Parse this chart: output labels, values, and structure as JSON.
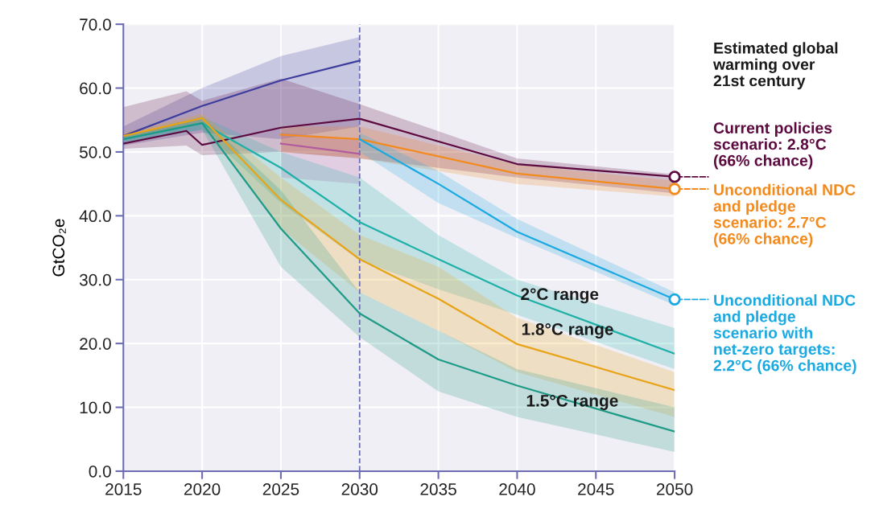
{
  "chart_data": {
    "type": "line",
    "ylabel": "GtCO₂e",
    "legend_title": "Estimated global warming over 21st century",
    "legend": "right",
    "grid": true,
    "xlim": [
      2015,
      2050
    ],
    "xticks": [
      2015,
      2020,
      2025,
      2030,
      2035,
      2040,
      2045,
      2050
    ],
    "ylim": [
      0,
      70
    ],
    "yticks": [
      {
        "value": 0,
        "label": "0.0"
      },
      {
        "value": 10,
        "label": "10.0"
      },
      {
        "value": 20,
        "label": "20.0"
      },
      {
        "value": 30,
        "label": "30.0"
      },
      {
        "value": 40,
        "label": "40.0"
      },
      {
        "value": 50,
        "label": "50.0"
      },
      {
        "value": 60,
        "label": "60.0"
      },
      {
        "value": 70,
        "label": "70.0"
      }
    ],
    "ref_lines": [
      {
        "axis": "x",
        "value": 2030,
        "label": null,
        "color": "#6d6db3",
        "line_style": "dashed"
      }
    ],
    "annotations": [
      {
        "text": "2°C range",
        "x": 2042.7,
        "y": 27.5
      },
      {
        "text": "1.8°C range",
        "x": 2043.2,
        "y": 22
      },
      {
        "text": "1.5°C range",
        "x": 2043.5,
        "y": 10.8
      }
    ],
    "series": [
      {
        "color": "#3d3d9e",
        "x": [
          2015,
          2020,
          2025,
          2030
        ],
        "values": [
          52.5,
          57.2,
          61.2,
          64.3
        ],
        "lower": [
          51,
          53,
          52,
          54
        ],
        "upper": [
          54,
          60,
          65,
          68
        ]
      },
      {
        "color": "#b05c9e",
        "x": [
          2025,
          2030
        ],
        "values": [
          51.3,
          49.7
        ],
        "lower": [
          46,
          45
        ],
        "upper": [
          53,
          52
        ]
      },
      {
        "name": "Current policies scenario: 2.8°C (66% chance)",
        "color": "#5c0a3f",
        "x": [
          2015,
          2019,
          2020,
          2025,
          2030,
          2040,
          2050
        ],
        "values": [
          51.3,
          53.3,
          51.1,
          53.8,
          55.2,
          48.1,
          46.1
        ],
        "lower": [
          50.5,
          51,
          49.5,
          50,
          49,
          46,
          43.5
        ],
        "upper": [
          57,
          59.5,
          58,
          61.5,
          57.5,
          49,
          46.5
        ]
      },
      {
        "name": "Unconditional NDC and pledge scenario: 2.7°C (66% chance)",
        "color": "#f28a1e",
        "x": [
          2025,
          2030,
          2040,
          2050
        ],
        "values": [
          52.7,
          52,
          46.6,
          44.2
        ],
        "lower": [
          50,
          49,
          45,
          43
        ],
        "upper": [
          54,
          54,
          48,
          45.5
        ]
      },
      {
        "name": "Unconditional NDC and pledge scenario with net-zero targets: 2.2°C (66% chance)",
        "color": "#1ba9e1",
        "x": [
          2030,
          2035,
          2040,
          2050
        ],
        "values": [
          52,
          45,
          37.5,
          26.9
        ],
        "lower": [
          50,
          42,
          36.5,
          26
        ],
        "upper": [
          53,
          47,
          39.5,
          28
        ]
      },
      {
        "color": "#1fb0a8",
        "x": [
          2015,
          2020,
          2025,
          2030,
          2035,
          2040,
          2050
        ],
        "values": [
          52,
          54.5,
          47.5,
          39,
          33.2,
          27.5,
          18.4
        ],
        "lower": [
          51.5,
          53.5,
          42,
          33,
          28.5,
          24.5,
          16
        ],
        "upper": [
          52.5,
          55.5,
          50,
          46,
          37,
          30,
          22.4
        ]
      },
      {
        "color": "#e8a317",
        "x": [
          2015,
          2020,
          2025,
          2030,
          2035,
          2040,
          2050
        ],
        "values": [
          52.5,
          55.3,
          42.5,
          33.2,
          27,
          19.9,
          12.7
        ],
        "lower": [
          52,
          54.5,
          38,
          28,
          22,
          15.5,
          8.5
        ],
        "upper": [
          53,
          56,
          46,
          37,
          32,
          24,
          15.5
        ]
      },
      {
        "color": "#1e9a86",
        "x": [
          2015,
          2020,
          2025,
          2030,
          2035,
          2040,
          2050
        ],
        "values": [
          52,
          54.5,
          38,
          24.7,
          17.5,
          13.4,
          6.2
        ],
        "lower": [
          51.5,
          53.5,
          32,
          21,
          12.5,
          8.5,
          3
        ],
        "upper": [
          52.5,
          55.5,
          44,
          28,
          22,
          16,
          10
        ]
      }
    ]
  }
}
